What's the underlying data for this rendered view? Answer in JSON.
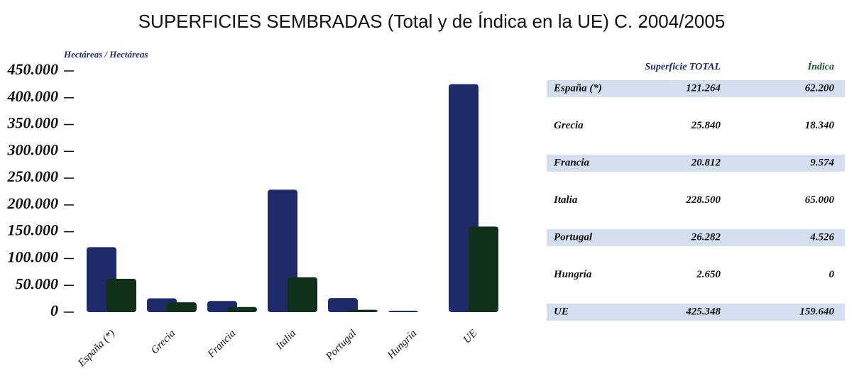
{
  "chart_data": {
    "type": "bar",
    "title": "SUPERFICIES SEMBRADAS (Total y de Índica en la UE) C. 2004/2005",
    "y_label": "Hectáreas / Hectáreas",
    "categories": [
      "España (*)",
      "Grecia",
      "Francia",
      "Italia",
      "Portugal",
      "Hungría",
      "UE"
    ],
    "series": [
      {
        "name": "Superficie TOTAL",
        "color": "#1f2a6b",
        "values": [
          121264,
          25840,
          20812,
          228500,
          26282,
          2650,
          425348
        ],
        "value_labels": [
          "121.264",
          "25.840",
          "20.812",
          "228.500",
          "26.282",
          "2.650",
          "425.348"
        ]
      },
      {
        "name": "Índica",
        "color": "#10301a",
        "values": [
          62200,
          18340,
          9574,
          65000,
          4526,
          0,
          159640
        ],
        "value_labels": [
          "62.200",
          "18.340",
          "9.574",
          "65.000",
          "4.526",
          "0",
          "159.640"
        ]
      }
    ],
    "ylim": [
      0,
      450000
    ],
    "yticks": [
      0,
      {
        "value": 50000,
        "label": "50.000"
      },
      {
        "value": 100000,
        "label": "100.000"
      },
      {
        "value": 150000,
        "label": "150.000"
      },
      {
        "value": 200000,
        "label": "200.000"
      },
      {
        "value": 250000,
        "label": "250.000"
      },
      {
        "value": 300000,
        "label": "300.000"
      },
      {
        "value": 350000,
        "label": "350.000"
      },
      {
        "value": 400000,
        "label": "400.000"
      },
      {
        "value": 450000,
        "label": "450.000"
      }
    ]
  }
}
